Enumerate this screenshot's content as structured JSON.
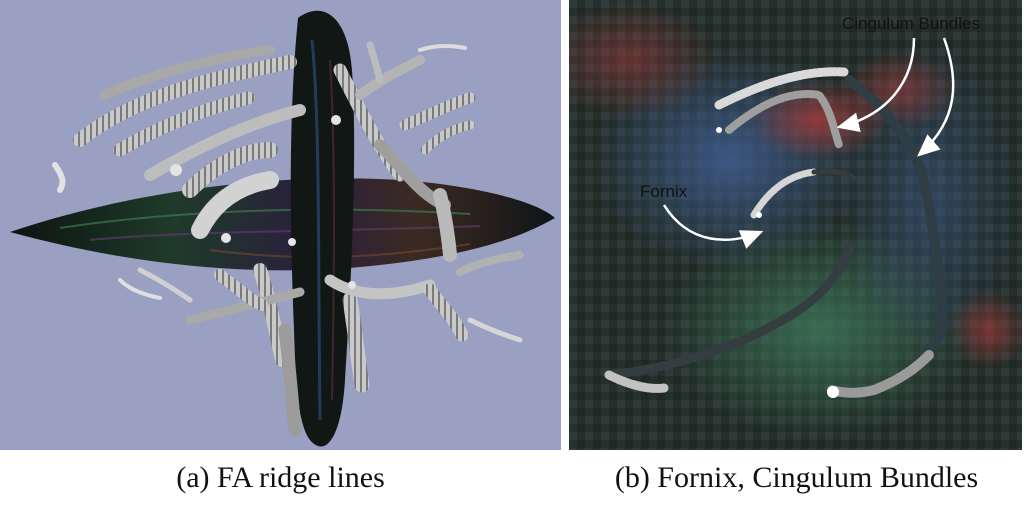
{
  "figure": {
    "panel_a": {
      "caption": "(a)  FA ridge lines"
    },
    "panel_b": {
      "caption": "(b)  Fornix, Cingulum Bundles",
      "annotations": {
        "cingulum": "Cingulum Bundles",
        "fornix": "Fornix"
      }
    }
  }
}
